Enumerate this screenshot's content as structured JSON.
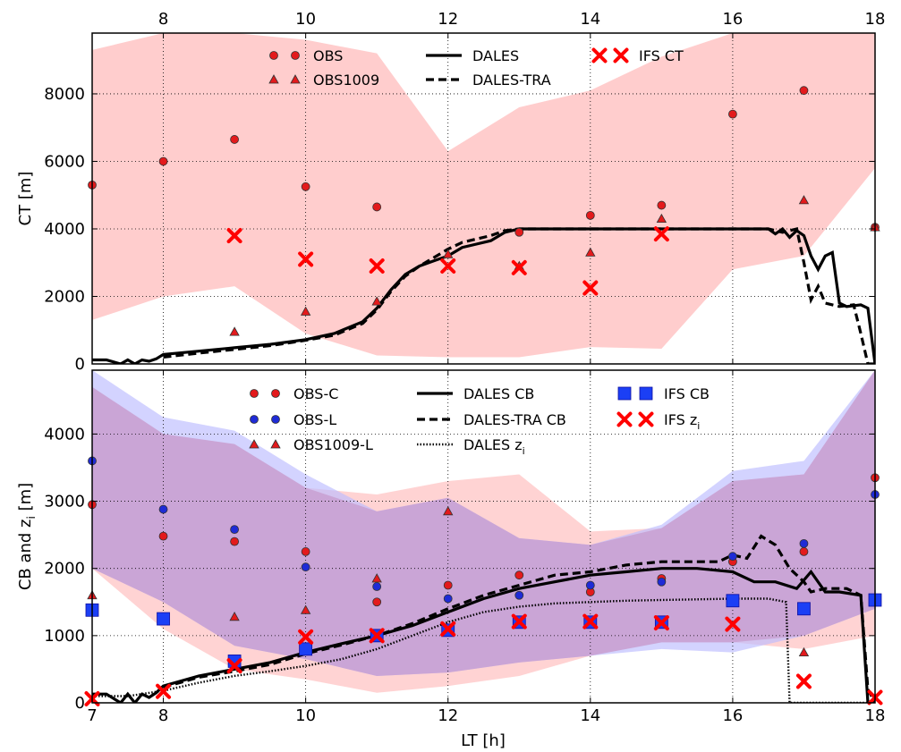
{
  "chart_data": [
    {
      "type": "line",
      "panel": "top",
      "title": "",
      "xlabel": "",
      "ylabel": "CT [m]",
      "xlim": [
        7,
        18
      ],
      "ylim": [
        0,
        9800
      ],
      "xticks": [
        8,
        10,
        12,
        14,
        16,
        18
      ],
      "xtick_position": "top",
      "yticks": [
        0,
        2000,
        4000,
        6000,
        8000
      ],
      "grid": true,
      "legend": {
        "placement": "top",
        "entries": [
          "OBS",
          "OBS1009",
          "DALES",
          "DALES-TRA",
          "IFS CT"
        ]
      },
      "colors": {
        "obs": "#e31a1c",
        "ifs": "#ff0000",
        "band": "#ffbcbc",
        "dales": "#000000"
      },
      "series": [
        {
          "name": "OBS",
          "kind": "scatter",
          "marker": "circle",
          "x": [
            7,
            8,
            9,
            10,
            11,
            13,
            14,
            15,
            16,
            17,
            18
          ],
          "y": [
            5300,
            6000,
            6650,
            5250,
            4650,
            3900,
            4400,
            4700,
            7400,
            8100,
            4050
          ]
        },
        {
          "name": "OBS1009",
          "kind": "scatter",
          "marker": "triangle",
          "x": [
            9,
            10,
            11,
            12,
            13,
            14,
            15,
            17,
            18
          ],
          "y": [
            950,
            1550,
            1850,
            3250,
            2900,
            3300,
            4300,
            4850,
            4050
          ]
        },
        {
          "name": "IFS CT",
          "kind": "scatter",
          "marker": "x",
          "x": [
            9,
            10,
            11,
            12,
            13,
            14,
            15
          ],
          "y": [
            3800,
            3100,
            2900,
            2900,
            2850,
            2250,
            3850
          ]
        },
        {
          "name": "DALES",
          "kind": "line",
          "style": "solid",
          "x": [
            7,
            7.2,
            7.4,
            7.5,
            7.6,
            7.7,
            7.8,
            7.9,
            8,
            8.5,
            9,
            9.5,
            10,
            10.4,
            10.8,
            11,
            11.2,
            11.4,
            11.6,
            11.8,
            12,
            12.2,
            12.4,
            12.6,
            12.8,
            13,
            14,
            15,
            16,
            16.5,
            16.6,
            16.7,
            16.8,
            16.9,
            17,
            17.1,
            17.2,
            17.3,
            17.4,
            17.5,
            17.6,
            17.8,
            17.9,
            18
          ],
          "y": [
            120,
            120,
            0,
            120,
            0,
            120,
            80,
            150,
            280,
            380,
            480,
            580,
            720,
            900,
            1250,
            1650,
            2200,
            2650,
            2900,
            3050,
            3200,
            3450,
            3550,
            3650,
            3900,
            4000,
            4000,
            4000,
            4000,
            4000,
            3850,
            4000,
            3750,
            3950,
            3800,
            3200,
            2800,
            3200,
            3300,
            1800,
            1700,
            1750,
            1650,
            0
          ]
        },
        {
          "name": "DALES-TRA",
          "kind": "line",
          "style": "dashed",
          "x": [
            8,
            8.5,
            9,
            9.5,
            10,
            10.4,
            10.8,
            11,
            11.2,
            11.4,
            11.6,
            11.8,
            12,
            12.2,
            12.4,
            12.6,
            12.8,
            13,
            14,
            15,
            16,
            16.5,
            16.7,
            16.9,
            17,
            17.1,
            17.2,
            17.3,
            17.5,
            17.7,
            17.8,
            17.9,
            18
          ],
          "y": [
            200,
            320,
            430,
            540,
            700,
            850,
            1200,
            1600,
            2150,
            2600,
            2900,
            3150,
            3400,
            3600,
            3700,
            3800,
            3950,
            4000,
            4000,
            4000,
            4000,
            4000,
            3900,
            4000,
            3000,
            1900,
            2300,
            1800,
            1700,
            1750,
            900,
            0,
            0
          ]
        }
      ],
      "bands": [
        {
          "x": [
            7,
            8,
            9,
            10,
            11,
            12,
            13,
            14,
            15,
            16,
            17,
            18
          ],
          "upper": [
            9300,
            9800,
            9800,
            9600,
            9200,
            6300,
            7600,
            8100,
            9100,
            9800,
            9800,
            9800
          ],
          "lower": [
            1300,
            2000,
            2300,
            900,
            250,
            200,
            200,
            500,
            450,
            2800,
            3200,
            5800
          ]
        }
      ]
    },
    {
      "type": "line",
      "panel": "bottom",
      "title": "",
      "xlabel": "LT [h]",
      "ylabel": "CB and z",
      "ylabel_subscript": "i",
      "ylabel_unit": " [m]",
      "xlim": [
        7,
        18
      ],
      "ylim": [
        0,
        4950
      ],
      "xticks": [
        8,
        10,
        12,
        14,
        16,
        18
      ],
      "yticks": [
        0,
        1000,
        2000,
        3000,
        4000
      ],
      "grid": true,
      "legend": {
        "placement": "top",
        "entries": [
          "OBS-C",
          "OBS-L",
          "OBS1009-L",
          "DALES CB",
          "DALES-TRA CB",
          "DALES z",
          "IFS CB",
          "IFS z"
        ]
      },
      "colors": {
        "obs_c": "#e31a1c",
        "obs_l": "#1f2bd6",
        "ifs_cb": "#1b3ff5",
        "ifs_z": "#ff0000",
        "band_red": "#ffbcbc",
        "band_blue": "#bcbcff",
        "overlap": "#c9a2d3"
      },
      "series": [
        {
          "name": "OBS-C",
          "kind": "scatter",
          "marker": "circle",
          "x": [
            7,
            8,
            9,
            10,
            11,
            12,
            13,
            14,
            15,
            16,
            17,
            18
          ],
          "y": [
            2950,
            2480,
            2400,
            2250,
            1500,
            1750,
            1900,
            1650,
            1850,
            2100,
            2250,
            3350
          ]
        },
        {
          "name": "OBS-L",
          "kind": "scatter",
          "marker": "circle",
          "x": [
            7,
            8,
            9,
            10,
            11,
            12,
            13,
            14,
            15,
            16,
            17,
            18
          ],
          "y": [
            3600,
            2880,
            2580,
            2020,
            1730,
            1550,
            1600,
            1750,
            1800,
            2180,
            2370,
            3100
          ]
        },
        {
          "name": "OBS1009-L",
          "kind": "scatter",
          "marker": "triangle",
          "x": [
            7,
            9,
            10,
            11,
            12,
            17
          ],
          "y": [
            1600,
            1280,
            1380,
            1850,
            2850,
            750
          ]
        },
        {
          "name": "IFS CB",
          "kind": "scatter",
          "marker": "square",
          "x": [
            7,
            8,
            9,
            10,
            11,
            12,
            13,
            14,
            15,
            16,
            17,
            18
          ],
          "y": [
            1380,
            1250,
            620,
            800,
            1000,
            1080,
            1200,
            1200,
            1200,
            1520,
            1400,
            1530
          ]
        },
        {
          "name": "IFS z",
          "kind": "scatter",
          "marker": "x",
          "x": [
            7,
            8,
            9,
            10,
            11,
            12,
            13,
            14,
            15,
            16,
            17,
            18
          ],
          "y": [
            60,
            170,
            550,
            980,
            1000,
            1100,
            1210,
            1210,
            1190,
            1170,
            320,
            80
          ]
        },
        {
          "name": "DALES CB",
          "kind": "line",
          "style": "solid",
          "x": [
            7,
            7.2,
            7.4,
            7.5,
            7.6,
            7.7,
            7.8,
            7.9,
            8,
            8.5,
            9,
            9.5,
            10,
            10.5,
            11,
            11.5,
            12,
            12.5,
            13,
            13.5,
            14,
            14.5,
            15,
            15.5,
            16,
            16.3,
            16.6,
            16.9,
            17.1,
            17.3,
            17.5,
            17.8,
            17.9,
            18
          ],
          "y": [
            130,
            130,
            0,
            130,
            0,
            130,
            80,
            150,
            250,
            400,
            500,
            600,
            750,
            880,
            1000,
            1150,
            1350,
            1550,
            1700,
            1800,
            1900,
            1950,
            2000,
            2000,
            1950,
            1800,
            1800,
            1700,
            1950,
            1650,
            1650,
            1600,
            0,
            0
          ]
        },
        {
          "name": "DALES-TRA CB",
          "kind": "line",
          "style": "dashed",
          "x": [
            8,
            8.5,
            9,
            9.5,
            10,
            10.5,
            11,
            11.5,
            12,
            12.5,
            13,
            13.5,
            14,
            14.5,
            15,
            15.5,
            15.8,
            16,
            16.2,
            16.4,
            16.6,
            16.8,
            17,
            17.1,
            17.3,
            17.6,
            17.8,
            17.9,
            18
          ],
          "y": [
            230,
            380,
            470,
            570,
            730,
            860,
            1000,
            1180,
            1400,
            1600,
            1750,
            1900,
            1950,
            2050,
            2100,
            2100,
            2100,
            2200,
            2150,
            2480,
            2350,
            2000,
            1800,
            1650,
            1700,
            1700,
            1600,
            200,
            0
          ]
        },
        {
          "name": "DALES z",
          "kind": "line",
          "style": "dotted",
          "x": [
            7,
            7.5,
            8,
            8.5,
            9,
            9.5,
            10,
            10.5,
            11,
            11.5,
            12,
            12.5,
            13,
            13.5,
            14,
            14.5,
            15,
            15.5,
            16,
            16.5,
            16.75,
            16.8,
            17,
            18
          ],
          "y": [
            100,
            100,
            180,
            300,
            400,
            470,
            550,
            650,
            800,
            1000,
            1200,
            1350,
            1430,
            1480,
            1500,
            1520,
            1530,
            1540,
            1550,
            1550,
            1500,
            0,
            0,
            0
          ]
        }
      ],
      "bands": [
        {
          "name": "red",
          "x": [
            7,
            8,
            9,
            10,
            11,
            12,
            13,
            14,
            15,
            16,
            17,
            18
          ],
          "upper": [
            4700,
            4000,
            3850,
            3200,
            3100,
            3300,
            3400,
            2550,
            2600,
            3300,
            3400,
            4950
          ],
          "lower": [
            2000,
            1100,
            500,
            350,
            150,
            250,
            400,
            700,
            900,
            900,
            800,
            1000
          ]
        },
        {
          "name": "blue",
          "x": [
            7,
            8,
            9,
            10,
            11,
            12,
            13,
            14,
            15,
            16,
            17,
            18
          ],
          "upper": [
            4950,
            4250,
            4050,
            3400,
            2850,
            3050,
            2450,
            2350,
            2650,
            3450,
            3600,
            4950
          ],
          "lower": [
            2000,
            1500,
            850,
            650,
            400,
            450,
            600,
            700,
            800,
            750,
            1000,
            1400
          ]
        }
      ]
    }
  ]
}
